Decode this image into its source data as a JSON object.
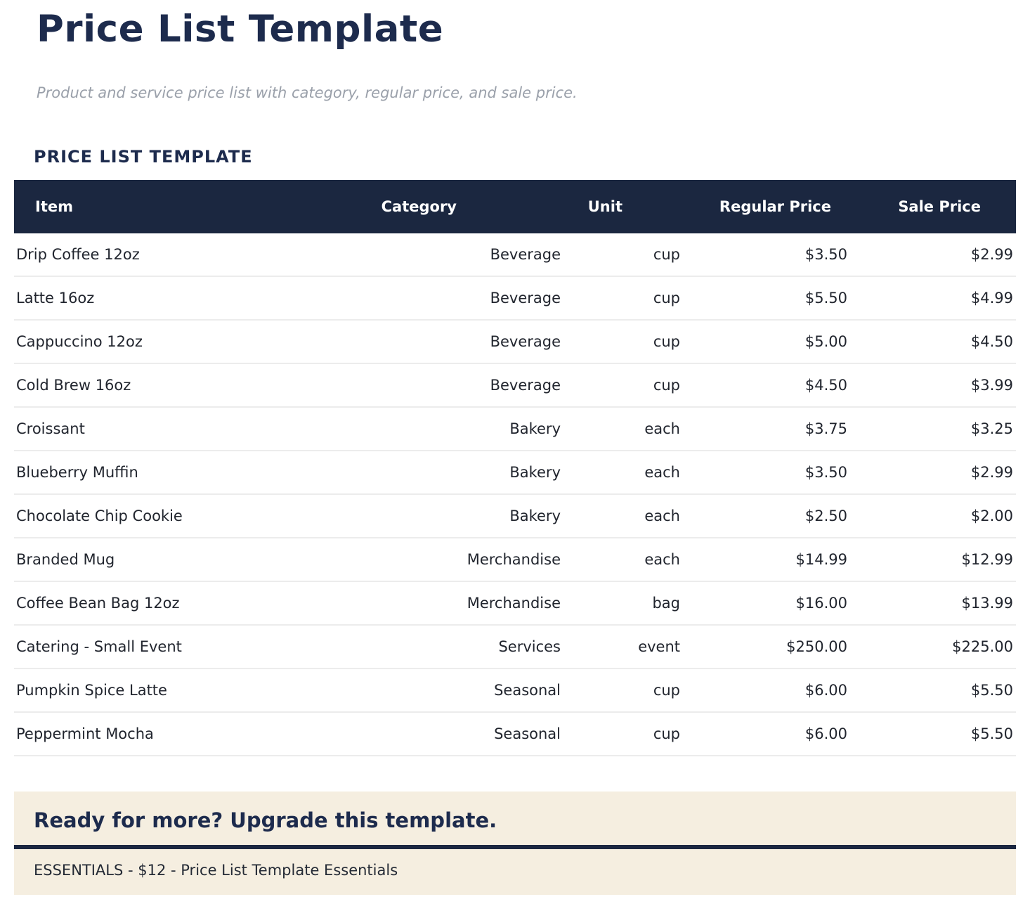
{
  "page": {
    "title": "Price List Template",
    "subtitle": "Product and service price list with category, regular price, and sale price.",
    "section_heading": "PRICE LIST TEMPLATE"
  },
  "table": {
    "columns": [
      "Item",
      "Category",
      "Unit",
      "Regular Price",
      "Sale Price"
    ],
    "rows": [
      [
        "Drip Coffee 12oz",
        "Beverage",
        "cup",
        "$3.50",
        "$2.99"
      ],
      [
        "Latte 16oz",
        "Beverage",
        "cup",
        "$5.50",
        "$4.99"
      ],
      [
        "Cappuccino 12oz",
        "Beverage",
        "cup",
        "$5.00",
        "$4.50"
      ],
      [
        "Cold Brew 16oz",
        "Beverage",
        "cup",
        "$4.50",
        "$3.99"
      ],
      [
        "Croissant",
        "Bakery",
        "each",
        "$3.75",
        "$3.25"
      ],
      [
        "Blueberry Muffin",
        "Bakery",
        "each",
        "$3.50",
        "$2.99"
      ],
      [
        "Chocolate Chip Cookie",
        "Bakery",
        "each",
        "$2.50",
        "$2.00"
      ],
      [
        "Branded Mug",
        "Merchandise",
        "each",
        "$14.99",
        "$12.99"
      ],
      [
        "Coffee Bean Bag 12oz",
        "Merchandise",
        "bag",
        "$16.00",
        "$13.99"
      ],
      [
        "Catering - Small Event",
        "Services",
        "event",
        "$250.00",
        "$225.00"
      ],
      [
        "Pumpkin Spice Latte",
        "Seasonal",
        "cup",
        "$6.00",
        "$5.50"
      ],
      [
        "Peppermint Mocha",
        "Seasonal",
        "cup",
        "$6.00",
        "$5.50"
      ]
    ]
  },
  "upsell": {
    "heading": "Ready for more? Upgrade this template.",
    "offer": "ESSENTIALS - $12 - Price List Template Essentials"
  },
  "colors": {
    "navy_header_bg": "#1b2740",
    "navy_text": "#1d2b4d",
    "banner_beige": "#f5eee0",
    "body_text": "#21252e",
    "subtitle_gray": "#9aa0aa",
    "row_separator": "#ececec"
  }
}
